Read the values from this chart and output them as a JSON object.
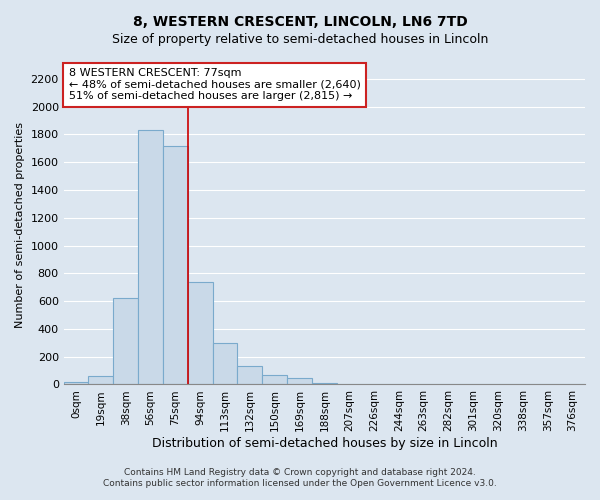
{
  "title": "8, WESTERN CRESCENT, LINCOLN, LN6 7TD",
  "subtitle": "Size of property relative to semi-detached houses in Lincoln",
  "xlabel": "Distribution of semi-detached houses by size in Lincoln",
  "ylabel": "Number of semi-detached properties",
  "bar_labels": [
    "0sqm",
    "19sqm",
    "38sqm",
    "56sqm",
    "75sqm",
    "94sqm",
    "113sqm",
    "132sqm",
    "150sqm",
    "169sqm",
    "188sqm",
    "207sqm",
    "226sqm",
    "244sqm",
    "263sqm",
    "282sqm",
    "301sqm",
    "320sqm",
    "338sqm",
    "357sqm",
    "376sqm"
  ],
  "bar_values": [
    20,
    60,
    625,
    1830,
    1720,
    740,
    300,
    130,
    70,
    45,
    10,
    0,
    0,
    0,
    0,
    0,
    0,
    0,
    0,
    0,
    0
  ],
  "bar_color": "#c9d9e8",
  "bar_edge_color": "#7aaacc",
  "vline_color": "#cc0000",
  "annotation_title": "8 WESTERN CRESCENT: 77sqm",
  "annotation_line1": "← 48% of semi-detached houses are smaller (2,640)",
  "annotation_line2": "51% of semi-detached houses are larger (2,815) →",
  "ylim": [
    0,
    2300
  ],
  "yticks": [
    0,
    200,
    400,
    600,
    800,
    1000,
    1200,
    1400,
    1600,
    1800,
    2000,
    2200
  ],
  "grid_color": "#ffffff",
  "bg_color": "#dce6f0",
  "footer1": "Contains HM Land Registry data © Crown copyright and database right 2024.",
  "footer2": "Contains public sector information licensed under the Open Government Licence v3.0."
}
